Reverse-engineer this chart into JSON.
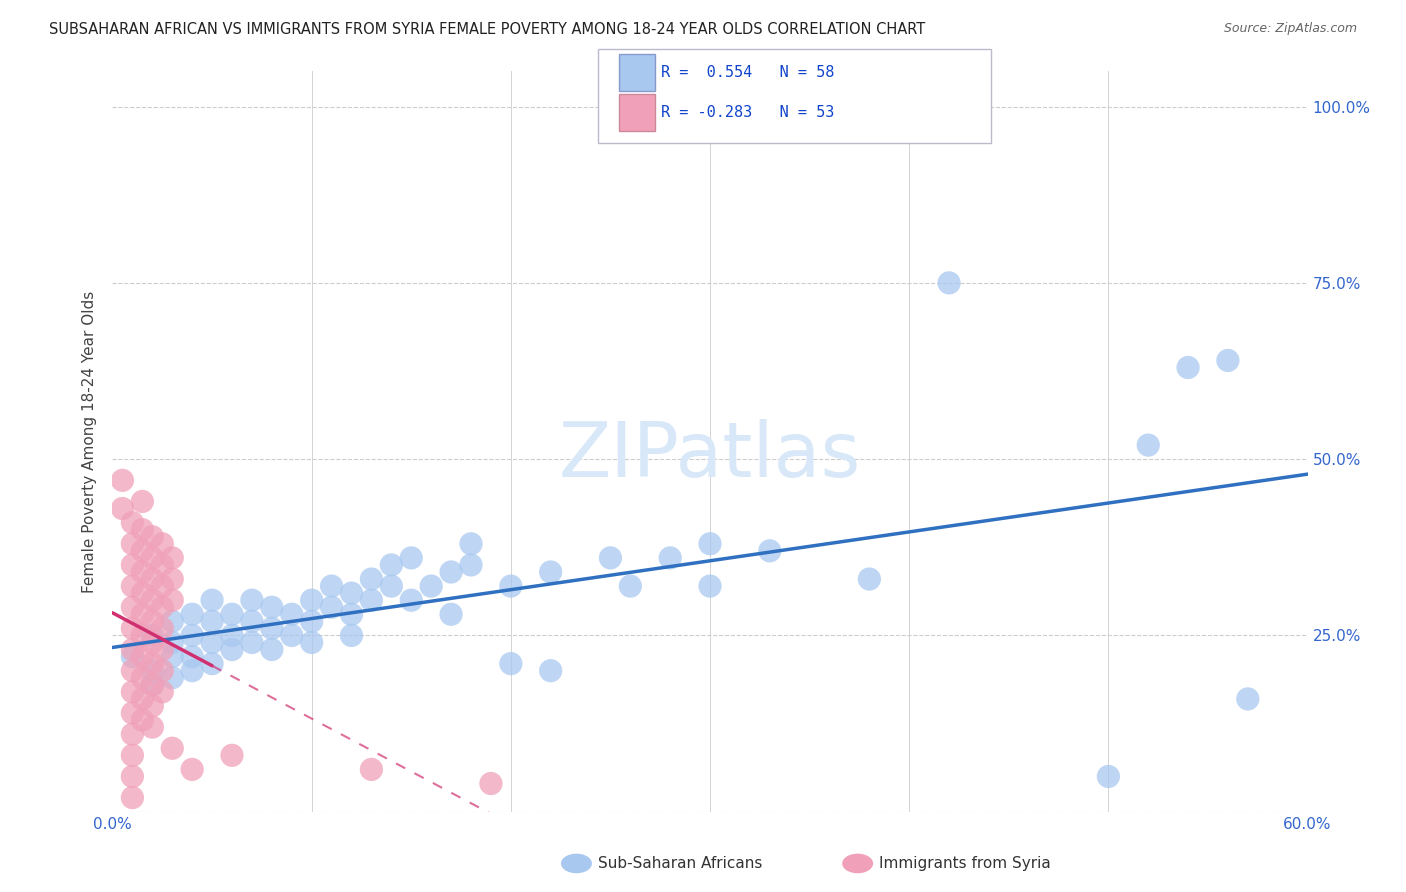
{
  "title": "SUBSAHARAN AFRICAN VS IMMIGRANTS FROM SYRIA FEMALE POVERTY AMONG 18-24 YEAR OLDS CORRELATION CHART",
  "source": "Source: ZipAtlas.com",
  "ylabel": "Female Poverty Among 18-24 Year Olds",
  "xlim": [
    0.0,
    0.6
  ],
  "ylim": [
    0.0,
    1.05
  ],
  "x_ticks": [
    0.0,
    0.1,
    0.2,
    0.3,
    0.4,
    0.5,
    0.6
  ],
  "y_ticks": [
    0.0,
    0.25,
    0.5,
    0.75,
    1.0
  ],
  "color_blue": "#A8C8F0",
  "color_pink": "#F0A0B8",
  "trendline_blue": "#3070C0",
  "trendline_pink": "#D03070",
  "watermark": "ZIPatlas",
  "watermark_color": "#D8E8F8",
  "background_color": "#FFFFFF",
  "grid_color": "#CCCCCC",
  "blue_scatter": [
    [
      0.01,
      0.22
    ],
    [
      0.02,
      0.25
    ],
    [
      0.02,
      0.2
    ],
    [
      0.02,
      0.18
    ],
    [
      0.03,
      0.27
    ],
    [
      0.03,
      0.24
    ],
    [
      0.03,
      0.22
    ],
    [
      0.03,
      0.19
    ],
    [
      0.04,
      0.28
    ],
    [
      0.04,
      0.25
    ],
    [
      0.04,
      0.22
    ],
    [
      0.04,
      0.2
    ],
    [
      0.05,
      0.3
    ],
    [
      0.05,
      0.27
    ],
    [
      0.05,
      0.24
    ],
    [
      0.05,
      0.21
    ],
    [
      0.06,
      0.28
    ],
    [
      0.06,
      0.25
    ],
    [
      0.06,
      0.23
    ],
    [
      0.07,
      0.3
    ],
    [
      0.07,
      0.27
    ],
    [
      0.07,
      0.24
    ],
    [
      0.08,
      0.29
    ],
    [
      0.08,
      0.26
    ],
    [
      0.08,
      0.23
    ],
    [
      0.09,
      0.28
    ],
    [
      0.09,
      0.25
    ],
    [
      0.1,
      0.3
    ],
    [
      0.1,
      0.27
    ],
    [
      0.1,
      0.24
    ],
    [
      0.11,
      0.32
    ],
    [
      0.11,
      0.29
    ],
    [
      0.12,
      0.31
    ],
    [
      0.12,
      0.28
    ],
    [
      0.12,
      0.25
    ],
    [
      0.13,
      0.33
    ],
    [
      0.13,
      0.3
    ],
    [
      0.14,
      0.35
    ],
    [
      0.14,
      0.32
    ],
    [
      0.15,
      0.36
    ],
    [
      0.15,
      0.3
    ],
    [
      0.16,
      0.32
    ],
    [
      0.17,
      0.34
    ],
    [
      0.17,
      0.28
    ],
    [
      0.18,
      0.38
    ],
    [
      0.18,
      0.35
    ],
    [
      0.2,
      0.32
    ],
    [
      0.2,
      0.21
    ],
    [
      0.22,
      0.34
    ],
    [
      0.22,
      0.2
    ],
    [
      0.25,
      0.36
    ],
    [
      0.26,
      0.32
    ],
    [
      0.28,
      0.36
    ],
    [
      0.3,
      0.38
    ],
    [
      0.3,
      0.32
    ],
    [
      0.33,
      0.37
    ],
    [
      0.38,
      0.33
    ],
    [
      0.42,
      0.75
    ],
    [
      0.5,
      0.05
    ],
    [
      0.52,
      0.52
    ],
    [
      0.54,
      0.63
    ],
    [
      0.56,
      0.64
    ],
    [
      0.57,
      0.16
    ]
  ],
  "pink_scatter": [
    [
      0.005,
      0.47
    ],
    [
      0.005,
      0.43
    ],
    [
      0.01,
      0.41
    ],
    [
      0.01,
      0.38
    ],
    [
      0.01,
      0.35
    ],
    [
      0.01,
      0.32
    ],
    [
      0.01,
      0.29
    ],
    [
      0.01,
      0.26
    ],
    [
      0.01,
      0.23
    ],
    [
      0.01,
      0.2
    ],
    [
      0.01,
      0.17
    ],
    [
      0.01,
      0.14
    ],
    [
      0.01,
      0.11
    ],
    [
      0.01,
      0.08
    ],
    [
      0.01,
      0.05
    ],
    [
      0.01,
      0.02
    ],
    [
      0.015,
      0.44
    ],
    [
      0.015,
      0.4
    ],
    [
      0.015,
      0.37
    ],
    [
      0.015,
      0.34
    ],
    [
      0.015,
      0.31
    ],
    [
      0.015,
      0.28
    ],
    [
      0.015,
      0.25
    ],
    [
      0.015,
      0.22
    ],
    [
      0.015,
      0.19
    ],
    [
      0.015,
      0.16
    ],
    [
      0.015,
      0.13
    ],
    [
      0.02,
      0.39
    ],
    [
      0.02,
      0.36
    ],
    [
      0.02,
      0.33
    ],
    [
      0.02,
      0.3
    ],
    [
      0.02,
      0.27
    ],
    [
      0.02,
      0.24
    ],
    [
      0.02,
      0.21
    ],
    [
      0.02,
      0.18
    ],
    [
      0.02,
      0.15
    ],
    [
      0.02,
      0.12
    ],
    [
      0.025,
      0.38
    ],
    [
      0.025,
      0.35
    ],
    [
      0.025,
      0.32
    ],
    [
      0.025,
      0.29
    ],
    [
      0.025,
      0.26
    ],
    [
      0.025,
      0.23
    ],
    [
      0.025,
      0.2
    ],
    [
      0.025,
      0.17
    ],
    [
      0.03,
      0.36
    ],
    [
      0.03,
      0.33
    ],
    [
      0.03,
      0.3
    ],
    [
      0.03,
      0.09
    ],
    [
      0.04,
      0.06
    ],
    [
      0.06,
      0.08
    ],
    [
      0.13,
      0.06
    ],
    [
      0.19,
      0.04
    ]
  ]
}
